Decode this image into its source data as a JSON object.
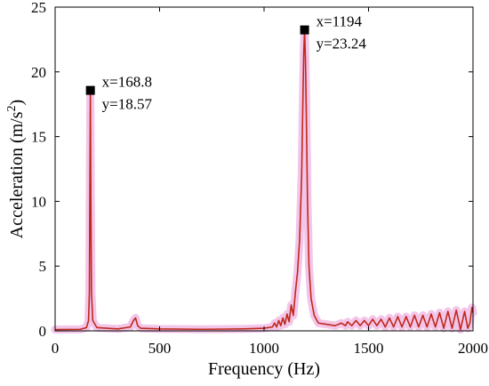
{
  "chart_data": {
    "type": "line",
    "xlabel": "Frequency (Hz)",
    "ylabel": "Acceleration (m/s",
    "ylabel_superscript": "2",
    "ylabel_suffix": ")",
    "xlim": [
      0,
      2000
    ],
    "ylim": [
      0,
      25
    ],
    "xticks": [
      0,
      500,
      1000,
      1500,
      2000
    ],
    "yticks": [
      0,
      5,
      10,
      15,
      20,
      25
    ],
    "grid": false,
    "series": [
      {
        "color": "#c0281c",
        "halo_color": "#f0b8e4",
        "x": [
          0,
          120,
          150,
          160,
          164,
          166,
          168.8,
          171,
          174,
          180,
          200,
          300,
          360,
          375,
          385,
          395,
          410,
          500,
          700,
          900,
          1000,
          1040,
          1050,
          1060,
          1070,
          1080,
          1090,
          1100,
          1110,
          1120,
          1130,
          1140,
          1150,
          1160,
          1170,
          1180,
          1186,
          1190,
          1194,
          1198,
          1202,
          1208,
          1215,
          1225,
          1240,
          1260,
          1300,
          1340,
          1370,
          1390,
          1400,
          1420,
          1440,
          1460,
          1480,
          1500,
          1520,
          1540,
          1560,
          1580,
          1600,
          1620,
          1640,
          1660,
          1680,
          1700,
          1720,
          1740,
          1760,
          1780,
          1800,
          1820,
          1840,
          1860,
          1880,
          1900,
          1920,
          1940,
          1960,
          1975,
          1985,
          1995,
          2000
        ],
        "y": [
          0.1,
          0.12,
          0.25,
          0.8,
          3,
          10,
          18.57,
          10,
          3,
          0.8,
          0.25,
          0.15,
          0.3,
          0.8,
          1.0,
          0.4,
          0.2,
          0.15,
          0.12,
          0.15,
          0.2,
          0.3,
          0.6,
          0.3,
          0.8,
          0.4,
          1.0,
          0.5,
          1.3,
          0.7,
          2.0,
          1.2,
          3.0,
          4.5,
          7.0,
          12,
          18,
          21.5,
          23.24,
          21,
          17,
          10,
          5,
          2.5,
          1.2,
          0.6,
          0.5,
          0.4,
          0.6,
          0.4,
          0.7,
          0.4,
          0.8,
          0.4,
          0.8,
          0.4,
          0.9,
          0.4,
          0.9,
          0.3,
          1.0,
          0.3,
          1.1,
          0.3,
          1.1,
          0.3,
          1.2,
          0.3,
          1.2,
          0.3,
          1.3,
          0.3,
          1.4,
          0.2,
          1.5,
          0.2,
          1.6,
          0.1,
          1.5,
          0.2,
          0.6,
          1.8,
          1.4
        ]
      }
    ],
    "annotations": [
      {
        "x": 168.8,
        "y": 18.57,
        "line1": "x=168.8",
        "line2": "y=18.57"
      },
      {
        "x": 1194,
        "y": 23.24,
        "line1": "x=1194",
        "line2": "y=23.24"
      }
    ]
  }
}
